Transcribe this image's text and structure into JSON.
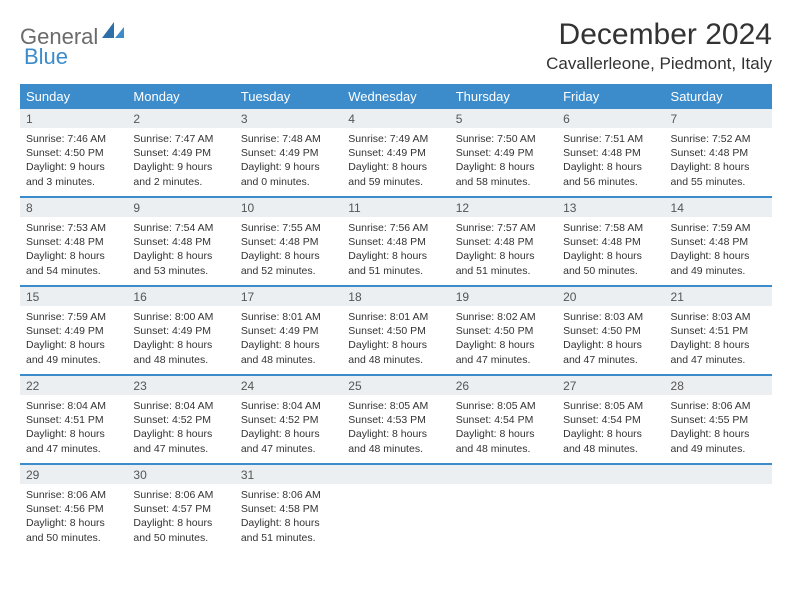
{
  "logo": {
    "general": "General",
    "blue": "Blue"
  },
  "title": "December 2024",
  "location": "Cavallerleone, Piedmont, Italy",
  "colors": {
    "header_bg": "#3c8ccc",
    "daynum_bg": "#eceff1",
    "divider": "#3c8ccc",
    "text": "#333333",
    "page_bg": "#ffffff"
  },
  "dayNames": [
    "Sunday",
    "Monday",
    "Tuesday",
    "Wednesday",
    "Thursday",
    "Friday",
    "Saturday"
  ],
  "weeks": [
    [
      {
        "n": "1",
        "sr": "7:46 AM",
        "ss": "4:50 PM",
        "dl": "9 hours and 3 minutes."
      },
      {
        "n": "2",
        "sr": "7:47 AM",
        "ss": "4:49 PM",
        "dl": "9 hours and 2 minutes."
      },
      {
        "n": "3",
        "sr": "7:48 AM",
        "ss": "4:49 PM",
        "dl": "9 hours and 0 minutes."
      },
      {
        "n": "4",
        "sr": "7:49 AM",
        "ss": "4:49 PM",
        "dl": "8 hours and 59 minutes."
      },
      {
        "n": "5",
        "sr": "7:50 AM",
        "ss": "4:49 PM",
        "dl": "8 hours and 58 minutes."
      },
      {
        "n": "6",
        "sr": "7:51 AM",
        "ss": "4:48 PM",
        "dl": "8 hours and 56 minutes."
      },
      {
        "n": "7",
        "sr": "7:52 AM",
        "ss": "4:48 PM",
        "dl": "8 hours and 55 minutes."
      }
    ],
    [
      {
        "n": "8",
        "sr": "7:53 AM",
        "ss": "4:48 PM",
        "dl": "8 hours and 54 minutes."
      },
      {
        "n": "9",
        "sr": "7:54 AM",
        "ss": "4:48 PM",
        "dl": "8 hours and 53 minutes."
      },
      {
        "n": "10",
        "sr": "7:55 AM",
        "ss": "4:48 PM",
        "dl": "8 hours and 52 minutes."
      },
      {
        "n": "11",
        "sr": "7:56 AM",
        "ss": "4:48 PM",
        "dl": "8 hours and 51 minutes."
      },
      {
        "n": "12",
        "sr": "7:57 AM",
        "ss": "4:48 PM",
        "dl": "8 hours and 51 minutes."
      },
      {
        "n": "13",
        "sr": "7:58 AM",
        "ss": "4:48 PM",
        "dl": "8 hours and 50 minutes."
      },
      {
        "n": "14",
        "sr": "7:59 AM",
        "ss": "4:48 PM",
        "dl": "8 hours and 49 minutes."
      }
    ],
    [
      {
        "n": "15",
        "sr": "7:59 AM",
        "ss": "4:49 PM",
        "dl": "8 hours and 49 minutes."
      },
      {
        "n": "16",
        "sr": "8:00 AM",
        "ss": "4:49 PM",
        "dl": "8 hours and 48 minutes."
      },
      {
        "n": "17",
        "sr": "8:01 AM",
        "ss": "4:49 PM",
        "dl": "8 hours and 48 minutes."
      },
      {
        "n": "18",
        "sr": "8:01 AM",
        "ss": "4:50 PM",
        "dl": "8 hours and 48 minutes."
      },
      {
        "n": "19",
        "sr": "8:02 AM",
        "ss": "4:50 PM",
        "dl": "8 hours and 47 minutes."
      },
      {
        "n": "20",
        "sr": "8:03 AM",
        "ss": "4:50 PM",
        "dl": "8 hours and 47 minutes."
      },
      {
        "n": "21",
        "sr": "8:03 AM",
        "ss": "4:51 PM",
        "dl": "8 hours and 47 minutes."
      }
    ],
    [
      {
        "n": "22",
        "sr": "8:04 AM",
        "ss": "4:51 PM",
        "dl": "8 hours and 47 minutes."
      },
      {
        "n": "23",
        "sr": "8:04 AM",
        "ss": "4:52 PM",
        "dl": "8 hours and 47 minutes."
      },
      {
        "n": "24",
        "sr": "8:04 AM",
        "ss": "4:52 PM",
        "dl": "8 hours and 47 minutes."
      },
      {
        "n": "25",
        "sr": "8:05 AM",
        "ss": "4:53 PM",
        "dl": "8 hours and 48 minutes."
      },
      {
        "n": "26",
        "sr": "8:05 AM",
        "ss": "4:54 PM",
        "dl": "8 hours and 48 minutes."
      },
      {
        "n": "27",
        "sr": "8:05 AM",
        "ss": "4:54 PM",
        "dl": "8 hours and 48 minutes."
      },
      {
        "n": "28",
        "sr": "8:06 AM",
        "ss": "4:55 PM",
        "dl": "8 hours and 49 minutes."
      }
    ],
    [
      {
        "n": "29",
        "sr": "8:06 AM",
        "ss": "4:56 PM",
        "dl": "8 hours and 50 minutes."
      },
      {
        "n": "30",
        "sr": "8:06 AM",
        "ss": "4:57 PM",
        "dl": "8 hours and 50 minutes."
      },
      {
        "n": "31",
        "sr": "8:06 AM",
        "ss": "4:58 PM",
        "dl": "8 hours and 51 minutes."
      },
      null,
      null,
      null,
      null
    ]
  ],
  "labels": {
    "sunrise": "Sunrise:",
    "sunset": "Sunset:",
    "daylight": "Daylight:"
  }
}
